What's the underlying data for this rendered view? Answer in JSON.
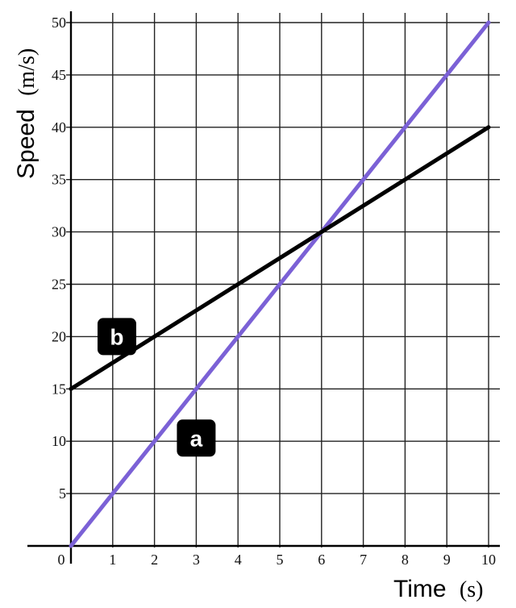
{
  "chart_data": {
    "type": "line",
    "xlabel": "Time",
    "xunit": "(s)",
    "ylabel": "Speed",
    "yunit": "(m/s)",
    "xlim": [
      0,
      10
    ],
    "ylim": [
      0,
      50
    ],
    "x_ticks": [
      "0",
      "1",
      "2",
      "3",
      "4",
      "5",
      "6",
      "7",
      "8",
      "9",
      "10"
    ],
    "y_ticks": [
      "5",
      "10",
      "15",
      "20",
      "25",
      "30",
      "35",
      "40",
      "45",
      "50"
    ],
    "grid": true,
    "series": [
      {
        "name": "a",
        "color": "#7b61d6",
        "x": [
          0,
          10
        ],
        "y": [
          0,
          50
        ]
      },
      {
        "name": "b",
        "color": "#000000",
        "x": [
          0,
          10
        ],
        "y": [
          15,
          40
        ]
      }
    ]
  }
}
